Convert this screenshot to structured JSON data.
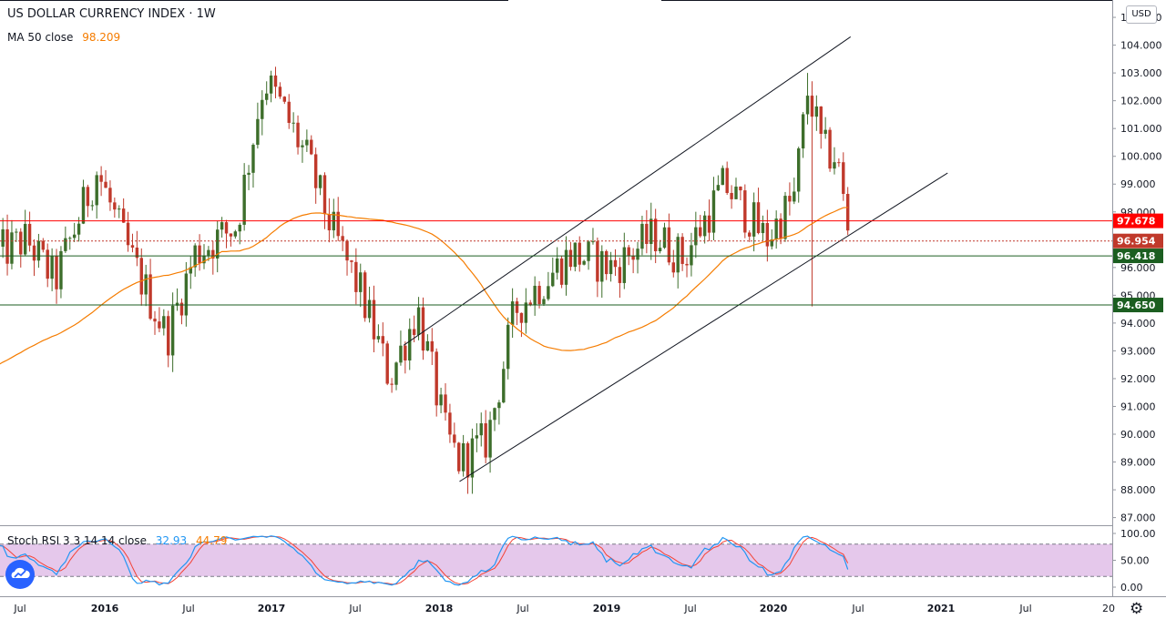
{
  "header": {
    "title": "US DOLLAR CURRENCY INDEX · 1W",
    "ma_label": "MA 50 close",
    "ma_value": "98.209",
    "currency": "USD"
  },
  "indicator": {
    "label": "Stoch RSI 3 3 14 14 close",
    "k_value": "32.93",
    "d_value": "44.79"
  },
  "colors": {
    "up": "#26a69a",
    "down": "#ef5350",
    "bull_candle": "#3d6e2b",
    "bear_candle": "#c0392b",
    "ma": "#f57c00",
    "stoch_k": "#2196f3",
    "stoch_d": "#f44336",
    "stoch_band": "#e1bee7",
    "red_level": "#ff0000",
    "green_level": "#1b5e20"
  },
  "chart_data": [
    {
      "type": "candlestick",
      "title": "US DOLLAR CURRENCY INDEX",
      "interval": "1W",
      "ylim": [
        86.6,
        105.4
      ],
      "y_ticks": [
        "87.000",
        "88.000",
        "89.000",
        "90.000",
        "91.000",
        "92.000",
        "93.000",
        "94.000",
        "95.000",
        "96.000",
        "97.000",
        "98.000",
        "99.000",
        "100.000",
        "101.000",
        "102.000",
        "103.000",
        "104.000",
        "105.000"
      ],
      "x_ticks": [
        {
          "label": "Jul",
          "date": "2015-07"
        },
        {
          "label": "2016",
          "date": "2016-01"
        },
        {
          "label": "Jul",
          "date": "2016-07"
        },
        {
          "label": "2017",
          "date": "2017-01"
        },
        {
          "label": "Jul",
          "date": "2017-07"
        },
        {
          "label": "2018",
          "date": "2018-01"
        },
        {
          "label": "Jul",
          "date": "2018-07"
        },
        {
          "label": "2019",
          "date": "2019-01"
        },
        {
          "label": "Jul",
          "date": "2019-07"
        },
        {
          "label": "2020",
          "date": "2020-01"
        },
        {
          "label": "Jul",
          "date": "2020-07"
        },
        {
          "label": "2021",
          "date": "2021-01"
        },
        {
          "label": "Jul",
          "date": "2021-07"
        },
        {
          "label": "20",
          "date": "2022-01"
        }
      ],
      "price_anchors": [
        [
          "2015-05",
          96.5
        ],
        [
          "2015-07",
          97.0
        ],
        [
          "2015-09",
          95.5
        ],
        [
          "2015-12",
          99.5
        ],
        [
          "2016-02",
          96.8
        ],
        [
          "2016-05",
          93.5
        ],
        [
          "2016-07",
          96.5
        ],
        [
          "2016-10",
          97.5
        ],
        [
          "2016-12",
          102.8
        ],
        [
          "2017-01",
          102.0
        ],
        [
          "2017-03",
          100.0
        ],
        [
          "2017-05",
          97.2
        ],
        [
          "2017-07",
          95.0
        ],
        [
          "2017-09",
          92.0
        ],
        [
          "2017-11",
          94.5
        ],
        [
          "2018-01",
          90.0
        ],
        [
          "2018-02",
          89.0
        ],
        [
          "2018-04",
          89.8
        ],
        [
          "2018-06",
          94.5
        ],
        [
          "2018-08",
          95.5
        ],
        [
          "2018-10",
          96.5
        ],
        [
          "2019-01",
          96.0
        ],
        [
          "2019-04",
          97.2
        ],
        [
          "2019-06",
          96.3
        ],
        [
          "2019-09",
          99.0
        ],
        [
          "2019-12",
          97.0
        ],
        [
          "2020-02",
          98.5
        ],
        [
          "2020-03",
          102.5
        ],
        [
          "2020-04",
          100.2
        ],
        [
          "2020-05",
          100.0
        ],
        [
          "2020-06",
          96.8
        ]
      ],
      "channel_lines": [
        {
          "from": [
            "2017-10",
            93.2
          ],
          "to": [
            "2020-06",
            104.3
          ]
        },
        {
          "from": [
            "2018-02",
            88.3
          ],
          "to": [
            "2021-01",
            99.4
          ]
        }
      ],
      "horizontal_levels": [
        {
          "value": 97.678,
          "label": "97.678",
          "style": "solid",
          "color": "#ff0000"
        },
        {
          "value": 96.954,
          "label": "96.954",
          "style": "dotted",
          "color": "#c0392b"
        },
        {
          "value": 96.418,
          "label": "96.418",
          "style": "solid",
          "color": "#1b5e20"
        },
        {
          "value": 94.65,
          "label": "94.650",
          "style": "solid",
          "color": "#1b5e20"
        }
      ],
      "ma": {
        "name": "MA 50 close",
        "last": 98.209
      }
    },
    {
      "type": "line",
      "title": "Stoch RSI 3 3 14 14 close",
      "ylim": [
        0,
        100
      ],
      "y_ticks": [
        "0.00",
        "50.00",
        "100.00"
      ],
      "band": [
        20,
        80
      ],
      "series": [
        {
          "name": "K",
          "last": 32.93
        },
        {
          "name": "D",
          "last": 44.79
        }
      ]
    }
  ]
}
